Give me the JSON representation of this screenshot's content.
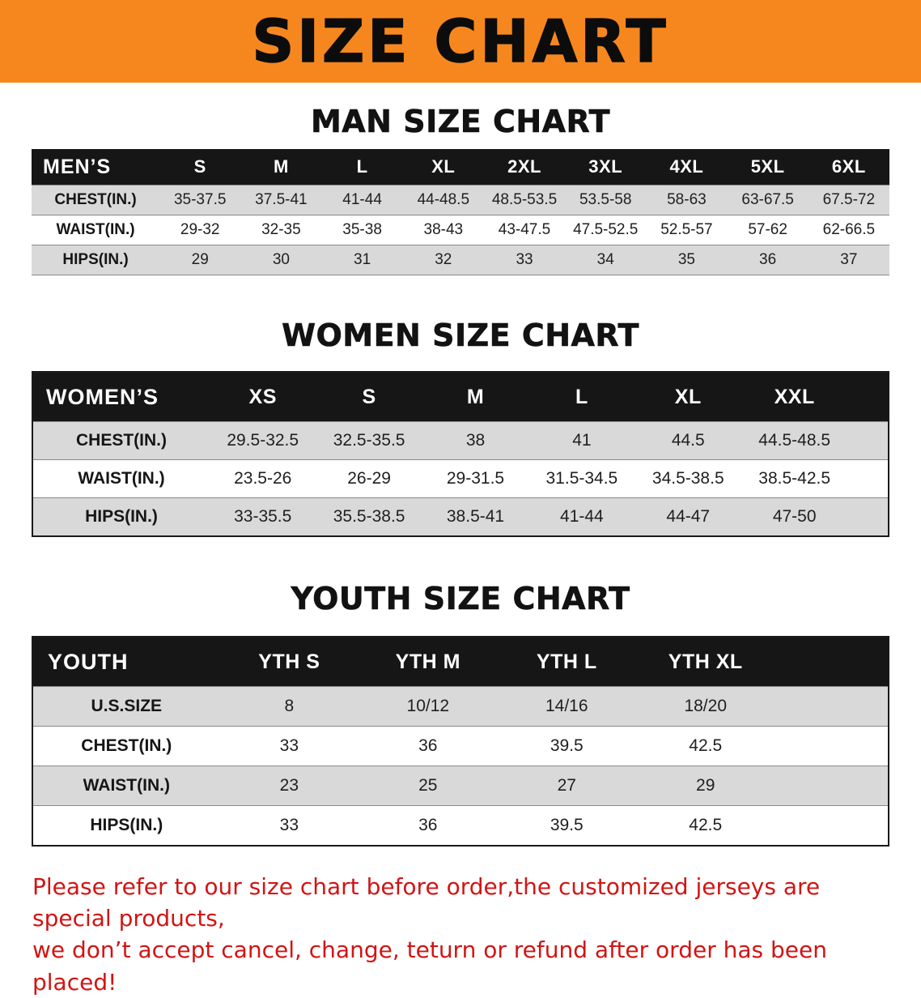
{
  "banner": {
    "title": "SIZE CHART",
    "bg_color": "#f6871f"
  },
  "sections": [
    {
      "title": "MAN SIZE CHART",
      "table": {
        "header": [
          "MEN’S",
          "S",
          "M",
          "L",
          "XL",
          "2XL",
          "3XL",
          "4XL",
          "5XL",
          "6XL"
        ],
        "rows": [
          {
            "label": "CHEST(IN.)",
            "values": [
              "35-37.5",
              "37.5-41",
              "41-44",
              "44-48.5",
              "48.5-53.5",
              "53.5-58",
              "58-63",
              "63-67.5",
              "67.5-72"
            ]
          },
          {
            "label": "WAIST(IN.)",
            "values": [
              "29-32",
              "32-35",
              "35-38",
              "38-43",
              "43-47.5",
              "47.5-52.5",
              "52.5-57",
              "57-62",
              "62-66.5"
            ]
          },
          {
            "label": "HIPS(IN.)",
            "values": [
              "29",
              "30",
              "31",
              "32",
              "33",
              "34",
              "35",
              "36",
              "37"
            ]
          }
        ]
      }
    },
    {
      "title": "WOMEN SIZE CHART",
      "table": {
        "header": [
          "WOMEN’S",
          "XS",
          "S",
          "M",
          "L",
          "XL",
          "XXL"
        ],
        "rows": [
          {
            "label": "CHEST(IN.)",
            "values": [
              "29.5-32.5",
              "32.5-35.5",
              "38",
              "41",
              "44.5",
              "44.5-48.5"
            ]
          },
          {
            "label": "WAIST(IN.)",
            "values": [
              "23.5-26",
              "26-29",
              "29-31.5",
              "31.5-34.5",
              "34.5-38.5",
              "38.5-42.5"
            ]
          },
          {
            "label": "HIPS(IN.)",
            "values": [
              "33-35.5",
              "35.5-38.5",
              "38.5-41",
              "41-44",
              "44-47",
              "47-50"
            ]
          }
        ]
      }
    },
    {
      "title": "YOUTH SIZE CHART",
      "table": {
        "header": [
          "YOUTH",
          "YTH S",
          "YTH M",
          "YTH L",
          "YTH XL"
        ],
        "rows": [
          {
            "label": "U.S.SIZE",
            "values": [
              "8",
              "10/12",
              "14/16",
              "18/20"
            ]
          },
          {
            "label": "CHEST(IN.)",
            "values": [
              "33",
              "36",
              "39.5",
              "42.5"
            ]
          },
          {
            "label": "WAIST(IN.)",
            "values": [
              "23",
              "25",
              "27",
              "29"
            ]
          },
          {
            "label": "HIPS(IN.)",
            "values": [
              "33",
              "36",
              "39.5",
              "42.5"
            ]
          }
        ]
      }
    }
  ],
  "disclaimer": {
    "line1": "Please refer to our size chart before order,the customized jerseys are special products,",
    "line2": "we don’t accept cancel, change, teturn or refund after order has been placed!",
    "color": "#d21414"
  }
}
